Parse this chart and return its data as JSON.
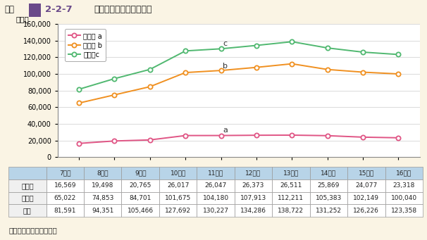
{
  "title_label": "図表",
  "title_num": "2-2-7",
  "title_text": "不登校児童生徒数の推移",
  "ylabel": "（人）",
  "source": "（資料）文部科学省調べ",
  "years": [
    "7年度",
    "8年度",
    "9年度",
    "10年度",
    "11年度",
    "12年度",
    "13年度",
    "14年度",
    "15年度",
    "16年度"
  ],
  "x_values": [
    7,
    8,
    9,
    10,
    11,
    12,
    13,
    14,
    15,
    16
  ],
  "shogakko": [
    16569,
    19498,
    20765,
    26017,
    26047,
    26373,
    26511,
    25869,
    24077,
    23318
  ],
  "chugakko": [
    65022,
    74853,
    84701,
    101675,
    104180,
    107913,
    112211,
    105383,
    102149,
    100040
  ],
  "total": [
    81591,
    94351,
    105466,
    127692,
    130227,
    134286,
    138722,
    131252,
    126226,
    123358
  ],
  "shogakko_color": "#e05585",
  "chugakko_color": "#f09020",
  "total_color": "#50b870",
  "ylim": [
    0,
    160000
  ],
  "yticks": [
    0,
    20000,
    40000,
    60000,
    80000,
    100000,
    120000,
    140000,
    160000
  ],
  "bg_color": "#faf4e4",
  "header_bg": "#cbbfda",
  "square_color": "#6a4a8a",
  "table_header_bg": "#b8d4e8",
  "table_row_label_bg": "#f0f0f0",
  "table_data_bg": "#ffffff",
  "table_border": "#999999",
  "legend_labels": [
    "小学校 a",
    "中学校 b",
    "合計　c"
  ],
  "label_a": "a",
  "label_b": "b",
  "label_c": "c"
}
